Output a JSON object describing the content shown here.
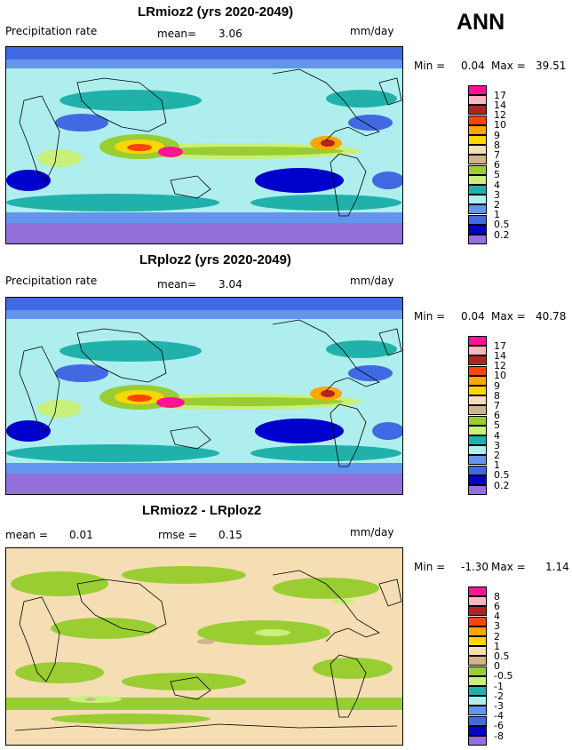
{
  "season": "ANN",
  "panels": [
    {
      "title": "LRmioz2 (yrs 2020-2049)",
      "left_label": "Precipitation rate",
      "mean_label": "mean=",
      "mean_value": "3.06",
      "units": "mm/day",
      "range": {
        "min_label": "Min =",
        "min": "0.04",
        "max_label": "Max =",
        "max": "39.51"
      },
      "legend": {
        "labels": [
          "17",
          "14",
          "12",
          "10",
          "9",
          "8",
          "7",
          "6",
          "5",
          "4",
          "3",
          "2",
          "1",
          "0.5",
          "0.2"
        ],
        "colors": [
          "#ff1493",
          "#ffb6c1",
          "#b22222",
          "#ff4500",
          "#ffa500",
          "#ffd700",
          "#f5deb3",
          "#d2b48c",
          "#9acd32",
          "#c8f07a",
          "#20b2aa",
          "#afeeee",
          "#6495ed",
          "#4169e1",
          "#0000cd",
          "#9370db"
        ]
      }
    },
    {
      "title": "LRploz2 (yrs 2020-2049)",
      "left_label": "Precipitation rate",
      "mean_label": "mean=",
      "mean_value": "3.04",
      "units": "mm/day",
      "range": {
        "min_label": "Min =",
        "min": "0.04",
        "max_label": "Max =",
        "max": "40.78"
      },
      "legend": {
        "labels": [
          "17",
          "14",
          "12",
          "10",
          "9",
          "8",
          "7",
          "6",
          "5",
          "4",
          "3",
          "2",
          "1",
          "0.5",
          "0.2"
        ],
        "colors": [
          "#ff1493",
          "#ffb6c1",
          "#b22222",
          "#ff4500",
          "#ffa500",
          "#ffd700",
          "#f5deb3",
          "#d2b48c",
          "#9acd32",
          "#c8f07a",
          "#20b2aa",
          "#afeeee",
          "#6495ed",
          "#4169e1",
          "#0000cd",
          "#9370db"
        ]
      }
    },
    {
      "title": "LRmioz2 - LRploz2",
      "left_label": "mean =",
      "mean_value": "0.01",
      "rmse_label": "rmse =",
      "rmse_value": "0.15",
      "units": "mm/day",
      "range": {
        "min_label": "Min =",
        "min": "-1.30",
        "max_label": "Max =",
        "max": "1.14"
      },
      "legend": {
        "labels": [
          "8",
          "6",
          "4",
          "3",
          "2",
          "1",
          "0.5",
          "0",
          "-0.5",
          "-1",
          "-2",
          "-3",
          "-4",
          "-6",
          "-8"
        ],
        "colors": [
          "#ff1493",
          "#ffb6c1",
          "#b22222",
          "#ff4500",
          "#ffa500",
          "#ffd700",
          "#f5deb3",
          "#d2b48c",
          "#9acd32",
          "#c8f07a",
          "#20b2aa",
          "#afeeee",
          "#6495ed",
          "#4169e1",
          "#0000cd",
          "#9370db"
        ]
      }
    }
  ]
}
